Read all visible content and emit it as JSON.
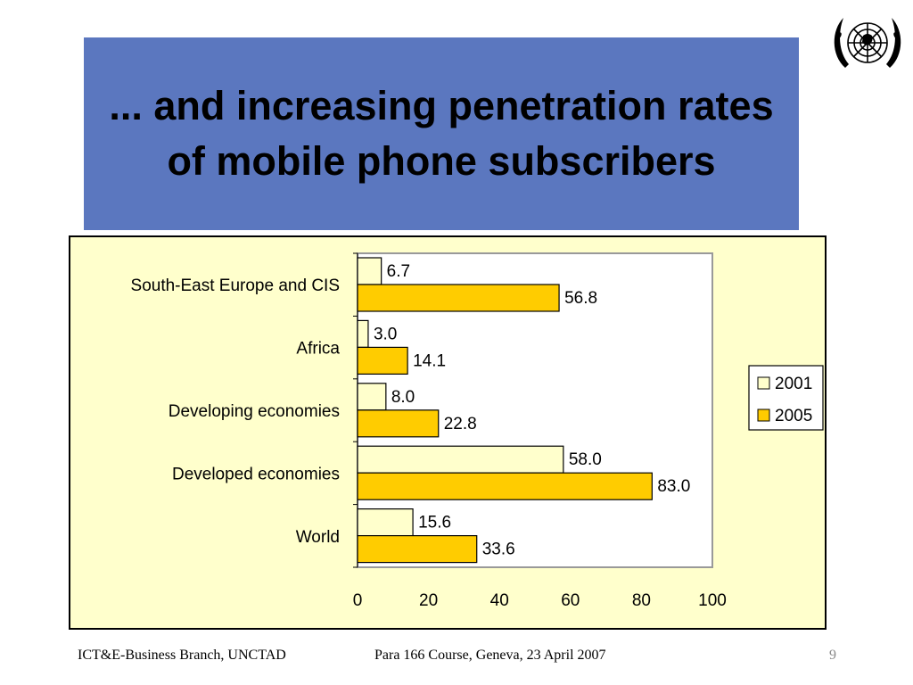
{
  "slide": {
    "title": "... and increasing penetration rates of mobile phone subscribers",
    "footer_left": "ICT&E-Business Branch, UNCTAD",
    "footer_center": "Para 166 Course, Geneva, 23 April 2007",
    "page_number": "9",
    "logo": "un-emblem"
  },
  "chart_data": {
    "type": "bar",
    "orientation": "horizontal",
    "categories": [
      "South-East Europe and CIS",
      "Africa",
      "Developing economies",
      "Developed economies",
      "World"
    ],
    "series": [
      {
        "name": "2001",
        "values": [
          6.7,
          3.0,
          8.0,
          58.0,
          15.6
        ],
        "color": "#ffffcc"
      },
      {
        "name": "2005",
        "values": [
          56.8,
          14.1,
          22.8,
          83.0,
          33.6
        ],
        "color": "#ffcc00"
      }
    ],
    "data_labels": [
      [
        "6.7",
        "3.0",
        "8.0",
        "58.0",
        "15.6"
      ],
      [
        "56.8",
        "14.1",
        "22.8",
        "83.0",
        "33.6"
      ]
    ],
    "x_ticks": [
      "0",
      "20",
      "40",
      "60",
      "80",
      "100"
    ],
    "xlim": [
      0,
      100
    ],
    "legend_position": "right",
    "grid": false,
    "colors": {
      "frame_bg": "#ffffcc",
      "plot_bg": "#ffffff",
      "title_bg": "#5b77bf"
    }
  }
}
